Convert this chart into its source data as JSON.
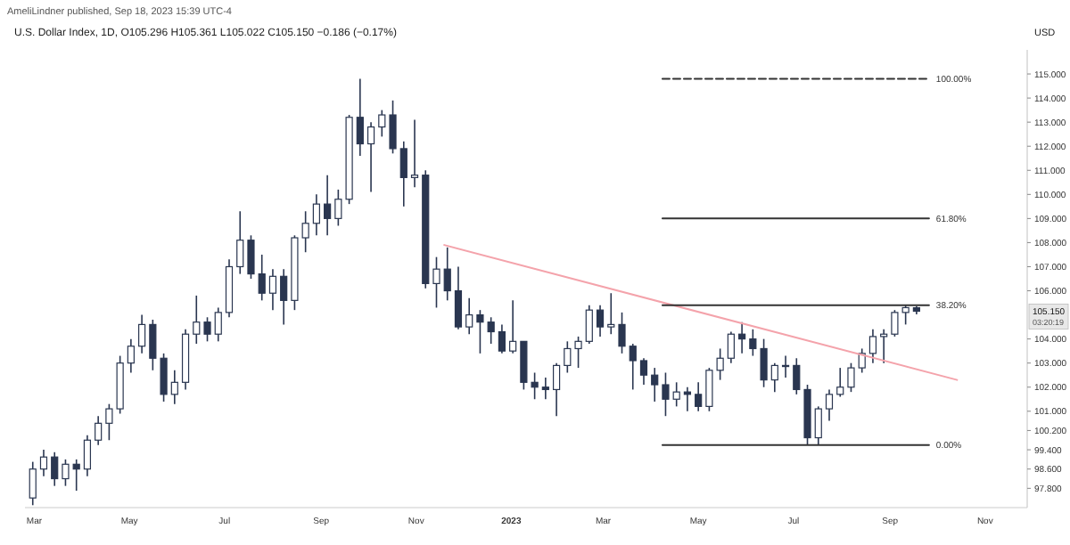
{
  "chart_data": {
    "type": "candlestick",
    "title": "U.S. Dollar Index, 1D, O105.296 H105.361 L105.022 C105.150 −0.186 (−0.17%)",
    "subtitle": "AmeliLindner published, Sep 18, 2023 15:39 UTC-4",
    "ylabel": "USD",
    "xlim": [
      "2022-02-23",
      "2023-11-28"
    ],
    "xticks": [
      {
        "value": "2022-03-01",
        "label": "Mar"
      },
      {
        "value": "2022-05-01",
        "label": "May"
      },
      {
        "value": "2022-07-01",
        "label": "Jul"
      },
      {
        "value": "2022-09-01",
        "label": "Sep"
      },
      {
        "value": "2022-11-01",
        "label": "Nov"
      },
      {
        "value": "2023-01-01",
        "label": "2023"
      },
      {
        "value": "2023-03-01",
        "label": "Mar"
      },
      {
        "value": "2023-05-01",
        "label": "May"
      },
      {
        "value": "2023-07-01",
        "label": "Jul"
      },
      {
        "value": "2023-09-01",
        "label": "Sep"
      },
      {
        "value": "2023-11-01",
        "label": "Nov"
      }
    ],
    "ylim": [
      97.0,
      116.0
    ],
    "yticks": [
      {
        "value": 97.8,
        "label": "97.800"
      },
      {
        "value": 98.6,
        "label": "98.600"
      },
      {
        "value": 99.4,
        "label": "99.400"
      },
      {
        "value": 100.2,
        "label": "100.200"
      },
      {
        "value": 101,
        "label": "101.000"
      },
      {
        "value": 102,
        "label": "102.000"
      },
      {
        "value": 103,
        "label": "103.000"
      },
      {
        "value": 104,
        "label": "104.000"
      },
      {
        "value": 106,
        "label": "106.000"
      },
      {
        "value": 107,
        "label": "107.000"
      },
      {
        "value": 108,
        "label": "108.000"
      },
      {
        "value": 109,
        "label": "109.000"
      },
      {
        "value": 110,
        "label": "110.000"
      },
      {
        "value": 111,
        "label": "111.000"
      },
      {
        "value": 112,
        "label": "112.000"
      },
      {
        "value": 113,
        "label": "113.000"
      },
      {
        "value": 114,
        "label": "114.000"
      },
      {
        "value": 115,
        "label": "115.000"
      }
    ],
    "grid": false,
    "annotations": [
      "105.150",
      "03:20:19"
    ],
    "series": [
      {
        "color": "#2a3650",
        "x": [
          "2022-02-28",
          "2022-03-07",
          "2022-03-14",
          "2022-03-21",
          "2022-03-28",
          "2022-04-04",
          "2022-04-11",
          "2022-04-18",
          "2022-04-25",
          "2022-05-02",
          "2022-05-09",
          "2022-05-16",
          "2022-05-23",
          "2022-05-30",
          "2022-06-06",
          "2022-06-13",
          "2022-06-20",
          "2022-06-27",
          "2022-07-04",
          "2022-07-11",
          "2022-07-18",
          "2022-07-25",
          "2022-08-01",
          "2022-08-08",
          "2022-08-15",
          "2022-08-22",
          "2022-08-29",
          "2022-09-05",
          "2022-09-12",
          "2022-09-19",
          "2022-09-26",
          "2022-10-03",
          "2022-10-10",
          "2022-10-17",
          "2022-10-24",
          "2022-10-31",
          "2022-11-07",
          "2022-11-14",
          "2022-11-21",
          "2022-11-28",
          "2022-12-05",
          "2022-12-12",
          "2022-12-19",
          "2022-12-26",
          "2023-01-02",
          "2023-01-09",
          "2023-01-16",
          "2023-01-23",
          "2023-01-30",
          "2023-02-06",
          "2023-02-13",
          "2023-02-20",
          "2023-02-27",
          "2023-03-06",
          "2023-03-13",
          "2023-03-20",
          "2023-03-27",
          "2023-04-03",
          "2023-04-10",
          "2023-04-17",
          "2023-04-24",
          "2023-05-01",
          "2023-05-08",
          "2023-05-15",
          "2023-05-22",
          "2023-05-29",
          "2023-06-05",
          "2023-06-12",
          "2023-06-19",
          "2023-06-26",
          "2023-07-03",
          "2023-07-10",
          "2023-07-17",
          "2023-07-24",
          "2023-07-31",
          "2023-08-07",
          "2023-08-14",
          "2023-08-21",
          "2023-08-28",
          "2023-09-04",
          "2023-09-11",
          "2023-09-18"
        ],
        "ohlc": [
          [
            97.4,
            98.9,
            97.1,
            98.6
          ],
          [
            98.6,
            99.4,
            98.3,
            99.1
          ],
          [
            99.1,
            99.3,
            97.9,
            98.2
          ],
          [
            98.2,
            99.0,
            97.9,
            98.8
          ],
          [
            98.8,
            99.0,
            97.7,
            98.6
          ],
          [
            98.6,
            100.0,
            98.3,
            99.8
          ],
          [
            99.8,
            100.8,
            99.6,
            100.5
          ],
          [
            100.5,
            101.3,
            99.8,
            101.1
          ],
          [
            101.1,
            103.3,
            100.9,
            103.0
          ],
          [
            103.0,
            104.0,
            102.6,
            103.7
          ],
          [
            103.7,
            105.0,
            103.4,
            104.6
          ],
          [
            104.6,
            104.8,
            102.7,
            103.2
          ],
          [
            103.2,
            103.4,
            101.4,
            101.7
          ],
          [
            101.7,
            102.7,
            101.3,
            102.2
          ],
          [
            102.2,
            104.4,
            101.9,
            104.2
          ],
          [
            104.2,
            105.8,
            103.8,
            104.7
          ],
          [
            104.7,
            104.9,
            103.9,
            104.2
          ],
          [
            104.2,
            105.3,
            103.9,
            105.1
          ],
          [
            105.1,
            107.3,
            104.9,
            107.0
          ],
          [
            107.0,
            109.3,
            106.7,
            108.1
          ],
          [
            108.1,
            108.3,
            106.5,
            106.7
          ],
          [
            106.7,
            107.5,
            105.6,
            105.9
          ],
          [
            105.9,
            106.9,
            105.2,
            106.6
          ],
          [
            106.6,
            106.9,
            104.6,
            105.6
          ],
          [
            105.6,
            108.3,
            105.2,
            108.2
          ],
          [
            108.2,
            109.3,
            107.6,
            108.8
          ],
          [
            108.8,
            110.0,
            108.3,
            109.6
          ],
          [
            109.6,
            110.8,
            108.3,
            109.0
          ],
          [
            109.0,
            110.2,
            108.7,
            109.8
          ],
          [
            109.8,
            113.3,
            109.6,
            113.2
          ],
          [
            113.2,
            114.8,
            111.6,
            112.1
          ],
          [
            112.1,
            113.0,
            110.1,
            112.8
          ],
          [
            112.8,
            113.5,
            112.4,
            113.3
          ],
          [
            113.3,
            113.9,
            111.7,
            111.9
          ],
          [
            111.9,
            112.2,
            109.5,
            110.7
          ],
          [
            110.7,
            113.1,
            110.3,
            110.8
          ],
          [
            110.8,
            111.0,
            106.1,
            106.3
          ],
          [
            106.3,
            107.4,
            105.3,
            106.9
          ],
          [
            106.9,
            107.8,
            105.6,
            106.0
          ],
          [
            106.0,
            107.0,
            104.4,
            104.5
          ],
          [
            104.5,
            105.7,
            104.2,
            105.0
          ],
          [
            105.0,
            105.2,
            103.4,
            104.7
          ],
          [
            104.7,
            104.9,
            103.8,
            104.3
          ],
          [
            104.3,
            104.6,
            103.4,
            103.5
          ],
          [
            103.5,
            105.6,
            103.4,
            103.9
          ],
          [
            103.9,
            103.9,
            101.9,
            102.2
          ],
          [
            102.2,
            102.6,
            101.5,
            102.0
          ],
          [
            102.0,
            102.4,
            101.5,
            101.9
          ],
          [
            101.9,
            103.0,
            100.8,
            102.9
          ],
          [
            102.9,
            103.9,
            102.6,
            103.6
          ],
          [
            103.6,
            104.1,
            102.8,
            103.9
          ],
          [
            103.9,
            105.4,
            103.8,
            105.2
          ],
          [
            105.2,
            105.4,
            104.1,
            104.5
          ],
          [
            104.5,
            105.9,
            104.2,
            104.6
          ],
          [
            104.6,
            105.1,
            103.4,
            103.7
          ],
          [
            103.7,
            103.8,
            101.9,
            103.1
          ],
          [
            103.1,
            103.2,
            102.1,
            102.5
          ],
          [
            102.5,
            102.8,
            101.4,
            102.1
          ],
          [
            102.1,
            102.6,
            100.8,
            101.5
          ],
          [
            101.5,
            102.2,
            101.2,
            101.8
          ],
          [
            101.8,
            102.0,
            101.0,
            101.7
          ],
          [
            101.7,
            102.2,
            101.0,
            101.2
          ],
          [
            101.2,
            102.8,
            101.0,
            102.7
          ],
          [
            102.7,
            103.6,
            102.3,
            103.2
          ],
          [
            103.2,
            104.3,
            103.0,
            104.2
          ],
          [
            104.2,
            104.7,
            103.4,
            104.0
          ],
          [
            104.0,
            104.4,
            103.3,
            103.6
          ],
          [
            103.6,
            104.0,
            102.0,
            102.3
          ],
          [
            102.3,
            103.0,
            101.8,
            102.9
          ],
          [
            102.9,
            103.3,
            102.4,
            102.9
          ],
          [
            102.9,
            103.2,
            101.7,
            101.9
          ],
          [
            101.9,
            102.1,
            99.6,
            99.9
          ],
          [
            99.9,
            101.2,
            99.6,
            101.1
          ],
          [
            101.1,
            101.9,
            100.6,
            101.7
          ],
          [
            101.7,
            102.8,
            101.6,
            102.0
          ],
          [
            102.0,
            103.0,
            101.8,
            102.8
          ],
          [
            102.8,
            103.6,
            102.6,
            103.4
          ],
          [
            103.4,
            104.4,
            103.0,
            104.1
          ],
          [
            104.1,
            104.4,
            103.0,
            104.2
          ],
          [
            104.2,
            105.2,
            104.1,
            105.1
          ],
          [
            105.1,
            105.4,
            104.6,
            105.3
          ],
          [
            105.296,
            105.361,
            105.022,
            105.15
          ]
        ]
      },
      {
        "type": "line",
        "color": "#f4a3ab",
        "x": [
          "2022-11-19",
          "2023-10-14"
        ],
        "values": [
          107.9,
          102.3
        ]
      },
      {
        "type": "line",
        "name": "100.00%",
        "color": "#333333",
        "line_style": "dashed",
        "x": [
          "2023-04-08",
          "2023-09-26"
        ],
        "values": [
          114.8,
          114.8
        ]
      },
      {
        "type": "line",
        "name": "61.80%",
        "color": "#333333",
        "line_style": "solid",
        "x": [
          "2023-04-08",
          "2023-09-26"
        ],
        "values": [
          109.0,
          109.0
        ]
      },
      {
        "type": "line",
        "name": "38.20%",
        "color": "#333333",
        "line_style": "solid",
        "x": [
          "2023-04-08",
          "2023-09-26"
        ],
        "values": [
          105.4,
          105.4
        ]
      },
      {
        "type": "line",
        "name": "0.00%",
        "color": "#333333",
        "line_style": "solid",
        "x": [
          "2023-04-08",
          "2023-09-26"
        ],
        "values": [
          99.6,
          99.6
        ]
      }
    ]
  }
}
